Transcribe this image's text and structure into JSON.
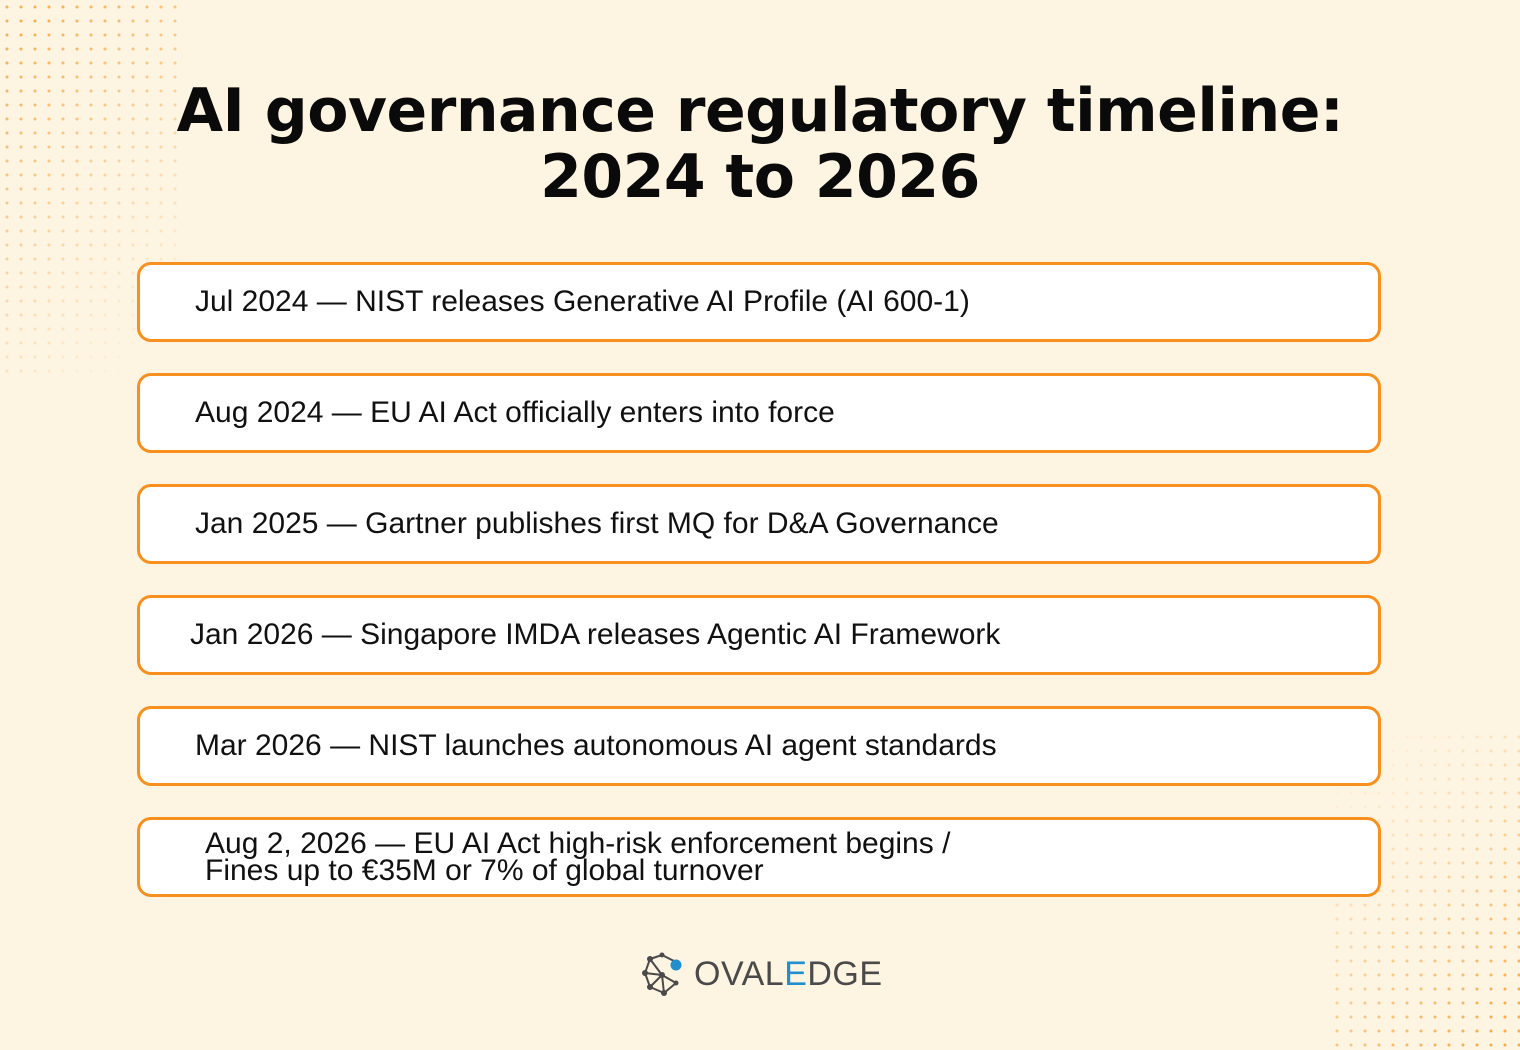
{
  "title": {
    "line1": "AI governance regulatory timeline:",
    "line2": "2024 to 2026"
  },
  "events": [
    {
      "text": "Jul 2024 — NIST releases Generative AI Profile (AI 600-1)"
    },
    {
      "text": "Aug 2024 — EU AI Act officially enters into force"
    },
    {
      "text": "Jan 2025 — Gartner publishes first MQ for D&A Governance"
    },
    {
      "text": "Jan 2026 — Singapore IMDA releases Agentic AI Framework"
    },
    {
      "text": "Mar 2026 — NIST launches autonomous AI agent standards"
    },
    {
      "line1": "Aug 2, 2026 — EU AI Act high-risk enforcement begins /",
      "line2": "Fines up to €35M or 7% of global turnover"
    }
  ],
  "logo": {
    "part1": "OVAL",
    "part2": "E",
    "part3": "DGE",
    "icon": "network-nodes-icon"
  },
  "colors": {
    "background": "#fef4e2",
    "border": "#f7901e",
    "accent": "#1f8fce",
    "text": "#111111"
  }
}
